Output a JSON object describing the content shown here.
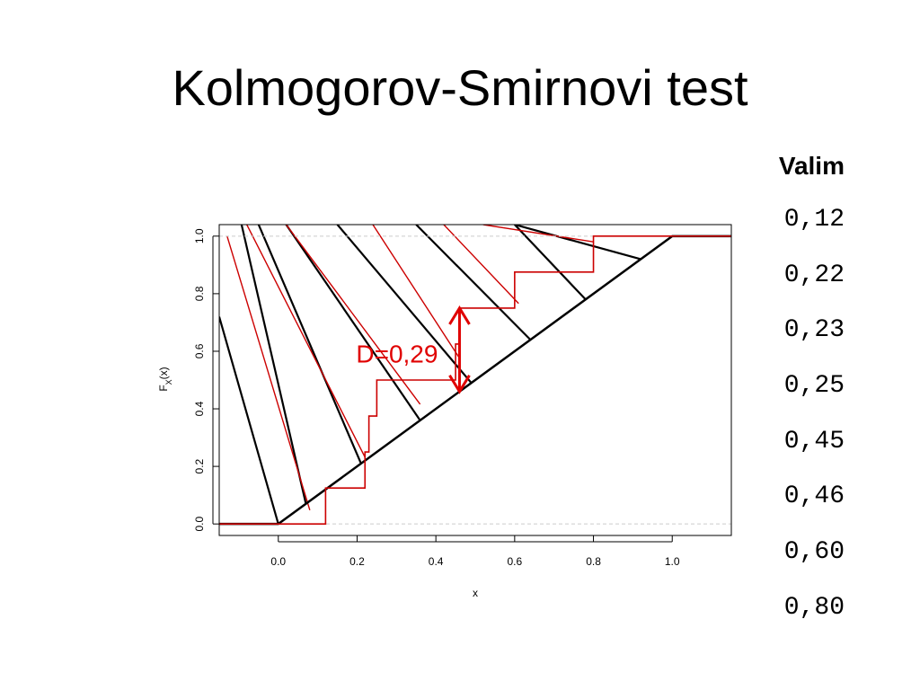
{
  "title": "Kolmogorov-Smirnovi test",
  "sample_panel": {
    "heading": "Valim",
    "values": [
      "0,12",
      "0,22",
      "0,23",
      "0,25",
      "0,45",
      "0,46",
      "0,60",
      "0,80"
    ]
  },
  "colors": {
    "empirical": "#cc0000",
    "theoretical": "#000000",
    "annotation": "#e00000",
    "refline": "#cccccc"
  },
  "chart_data": {
    "type": "line",
    "xlabel": "x",
    "ylabel": "F_X(x)",
    "ylabel_main": "F",
    "ylabel_sub": "X",
    "ylabel_rest": "(x)",
    "xlim": [
      -0.15,
      1.15
    ],
    "ylim": [
      -0.04,
      1.04
    ],
    "xticks": [
      "0.0",
      "0.2",
      "0.4",
      "0.6",
      "0.8",
      "1.0"
    ],
    "yticks": [
      "0.0",
      "0.2",
      "0.4",
      "0.6",
      "0.8",
      "1.0"
    ],
    "grid": false,
    "reference_lines_y": [
      0,
      1
    ],
    "series": [
      {
        "kind": "theoretical_cdf",
        "points": [
          [
            -0.15,
            0
          ],
          [
            0,
            0
          ],
          [
            1,
            1
          ],
          [
            1.15,
            1
          ]
        ]
      },
      {
        "kind": "empirical_cdf",
        "sample": [
          0.12,
          0.22,
          0.23,
          0.25,
          0.45,
          0.46,
          0.6,
          0.8
        ],
        "step_heights": [
          0,
          0.125,
          0.25,
          0.375,
          0.5,
          0.625,
          0.75,
          0.875,
          1
        ]
      }
    ],
    "annotation": {
      "label": "D=0,29",
      "x": 0.46,
      "y_from": 0.46,
      "y_to": 0.75
    }
  }
}
